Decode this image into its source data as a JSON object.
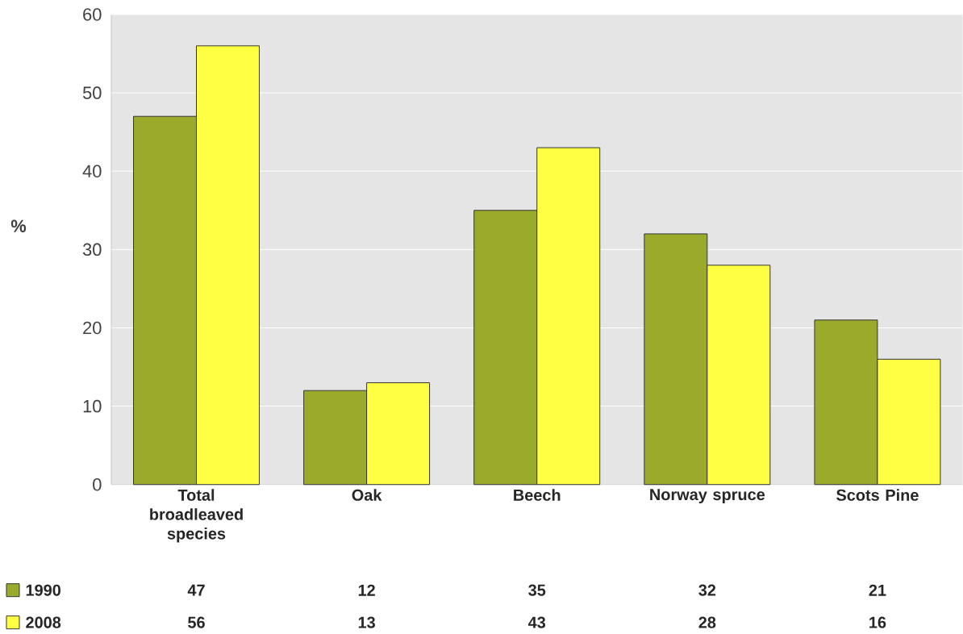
{
  "chart_data": {
    "type": "bar",
    "ylabel": "%",
    "categories": [
      "Total broadleaved species",
      "Oak",
      "Beech",
      "Norway spruce",
      "Scots Pine"
    ],
    "series": [
      {
        "name": "1990",
        "color": "#9aab2c",
        "values": [
          47,
          12,
          35,
          32,
          21
        ]
      },
      {
        "name": "2008",
        "color": "#ffff44",
        "values": [
          56,
          13,
          43,
          28,
          16
        ]
      }
    ],
    "ylim": [
      0,
      60
    ],
    "yticks": [
      0,
      10,
      20,
      30,
      40,
      50,
      60
    ],
    "grid": "y",
    "legend": "bottom left",
    "data_labels": true
  }
}
